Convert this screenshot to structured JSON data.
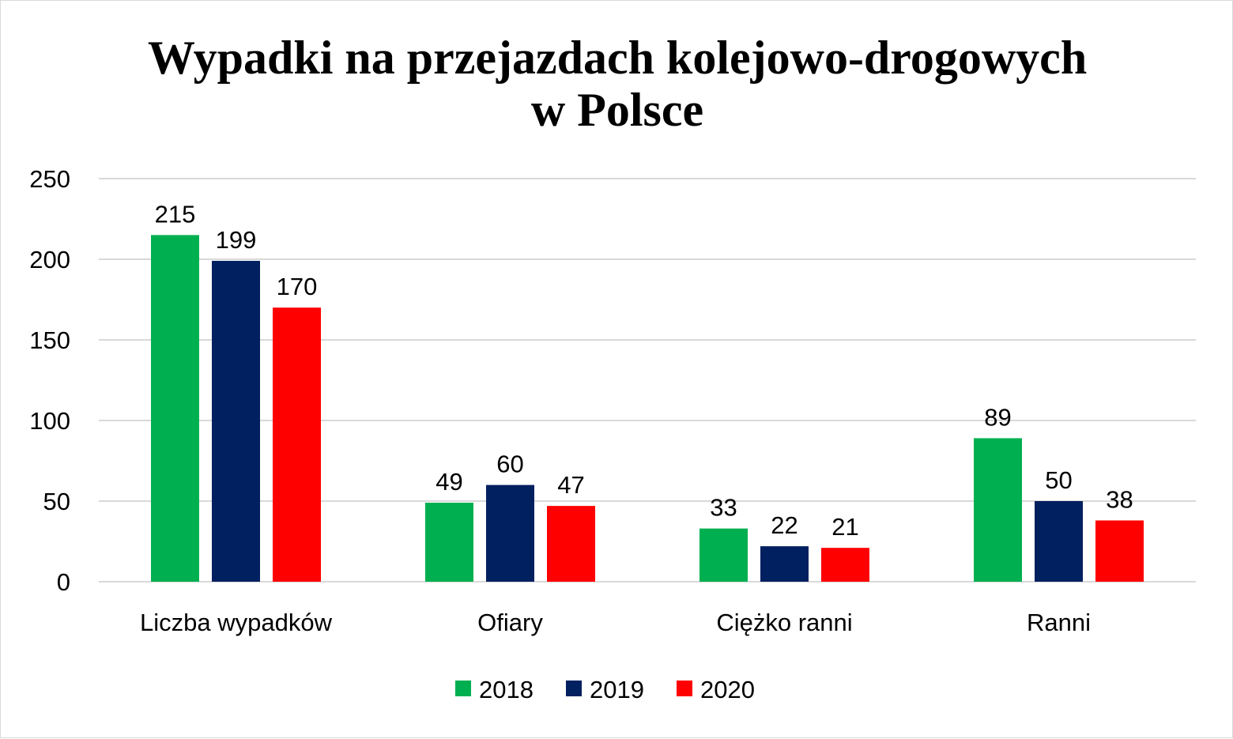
{
  "chart_data": {
    "type": "bar",
    "title": "Wypadki na przejazdach kolejowo-drogowych w Polsce",
    "title_lines": [
      "Wypadki na przejazdach kolejowo-drogowych",
      "w Polsce"
    ],
    "categories": [
      "Liczba wypadków",
      "Ofiary",
      "Ciężko ranni",
      "Ranni"
    ],
    "series": [
      {
        "name": "2018",
        "color": "#00B050",
        "values": [
          215,
          49,
          33,
          89
        ]
      },
      {
        "name": "2019",
        "color": "#002060",
        "values": [
          199,
          60,
          22,
          50
        ]
      },
      {
        "name": "2020",
        "color": "#FF0000",
        "values": [
          170,
          47,
          21,
          38
        ]
      }
    ],
    "y_ticks": [
      0,
      50,
      100,
      150,
      200,
      250
    ],
    "ylim": [
      0,
      250
    ],
    "xlabel": "",
    "ylabel": "",
    "grid": true,
    "legend_position": "bottom",
    "data_labels": true
  }
}
